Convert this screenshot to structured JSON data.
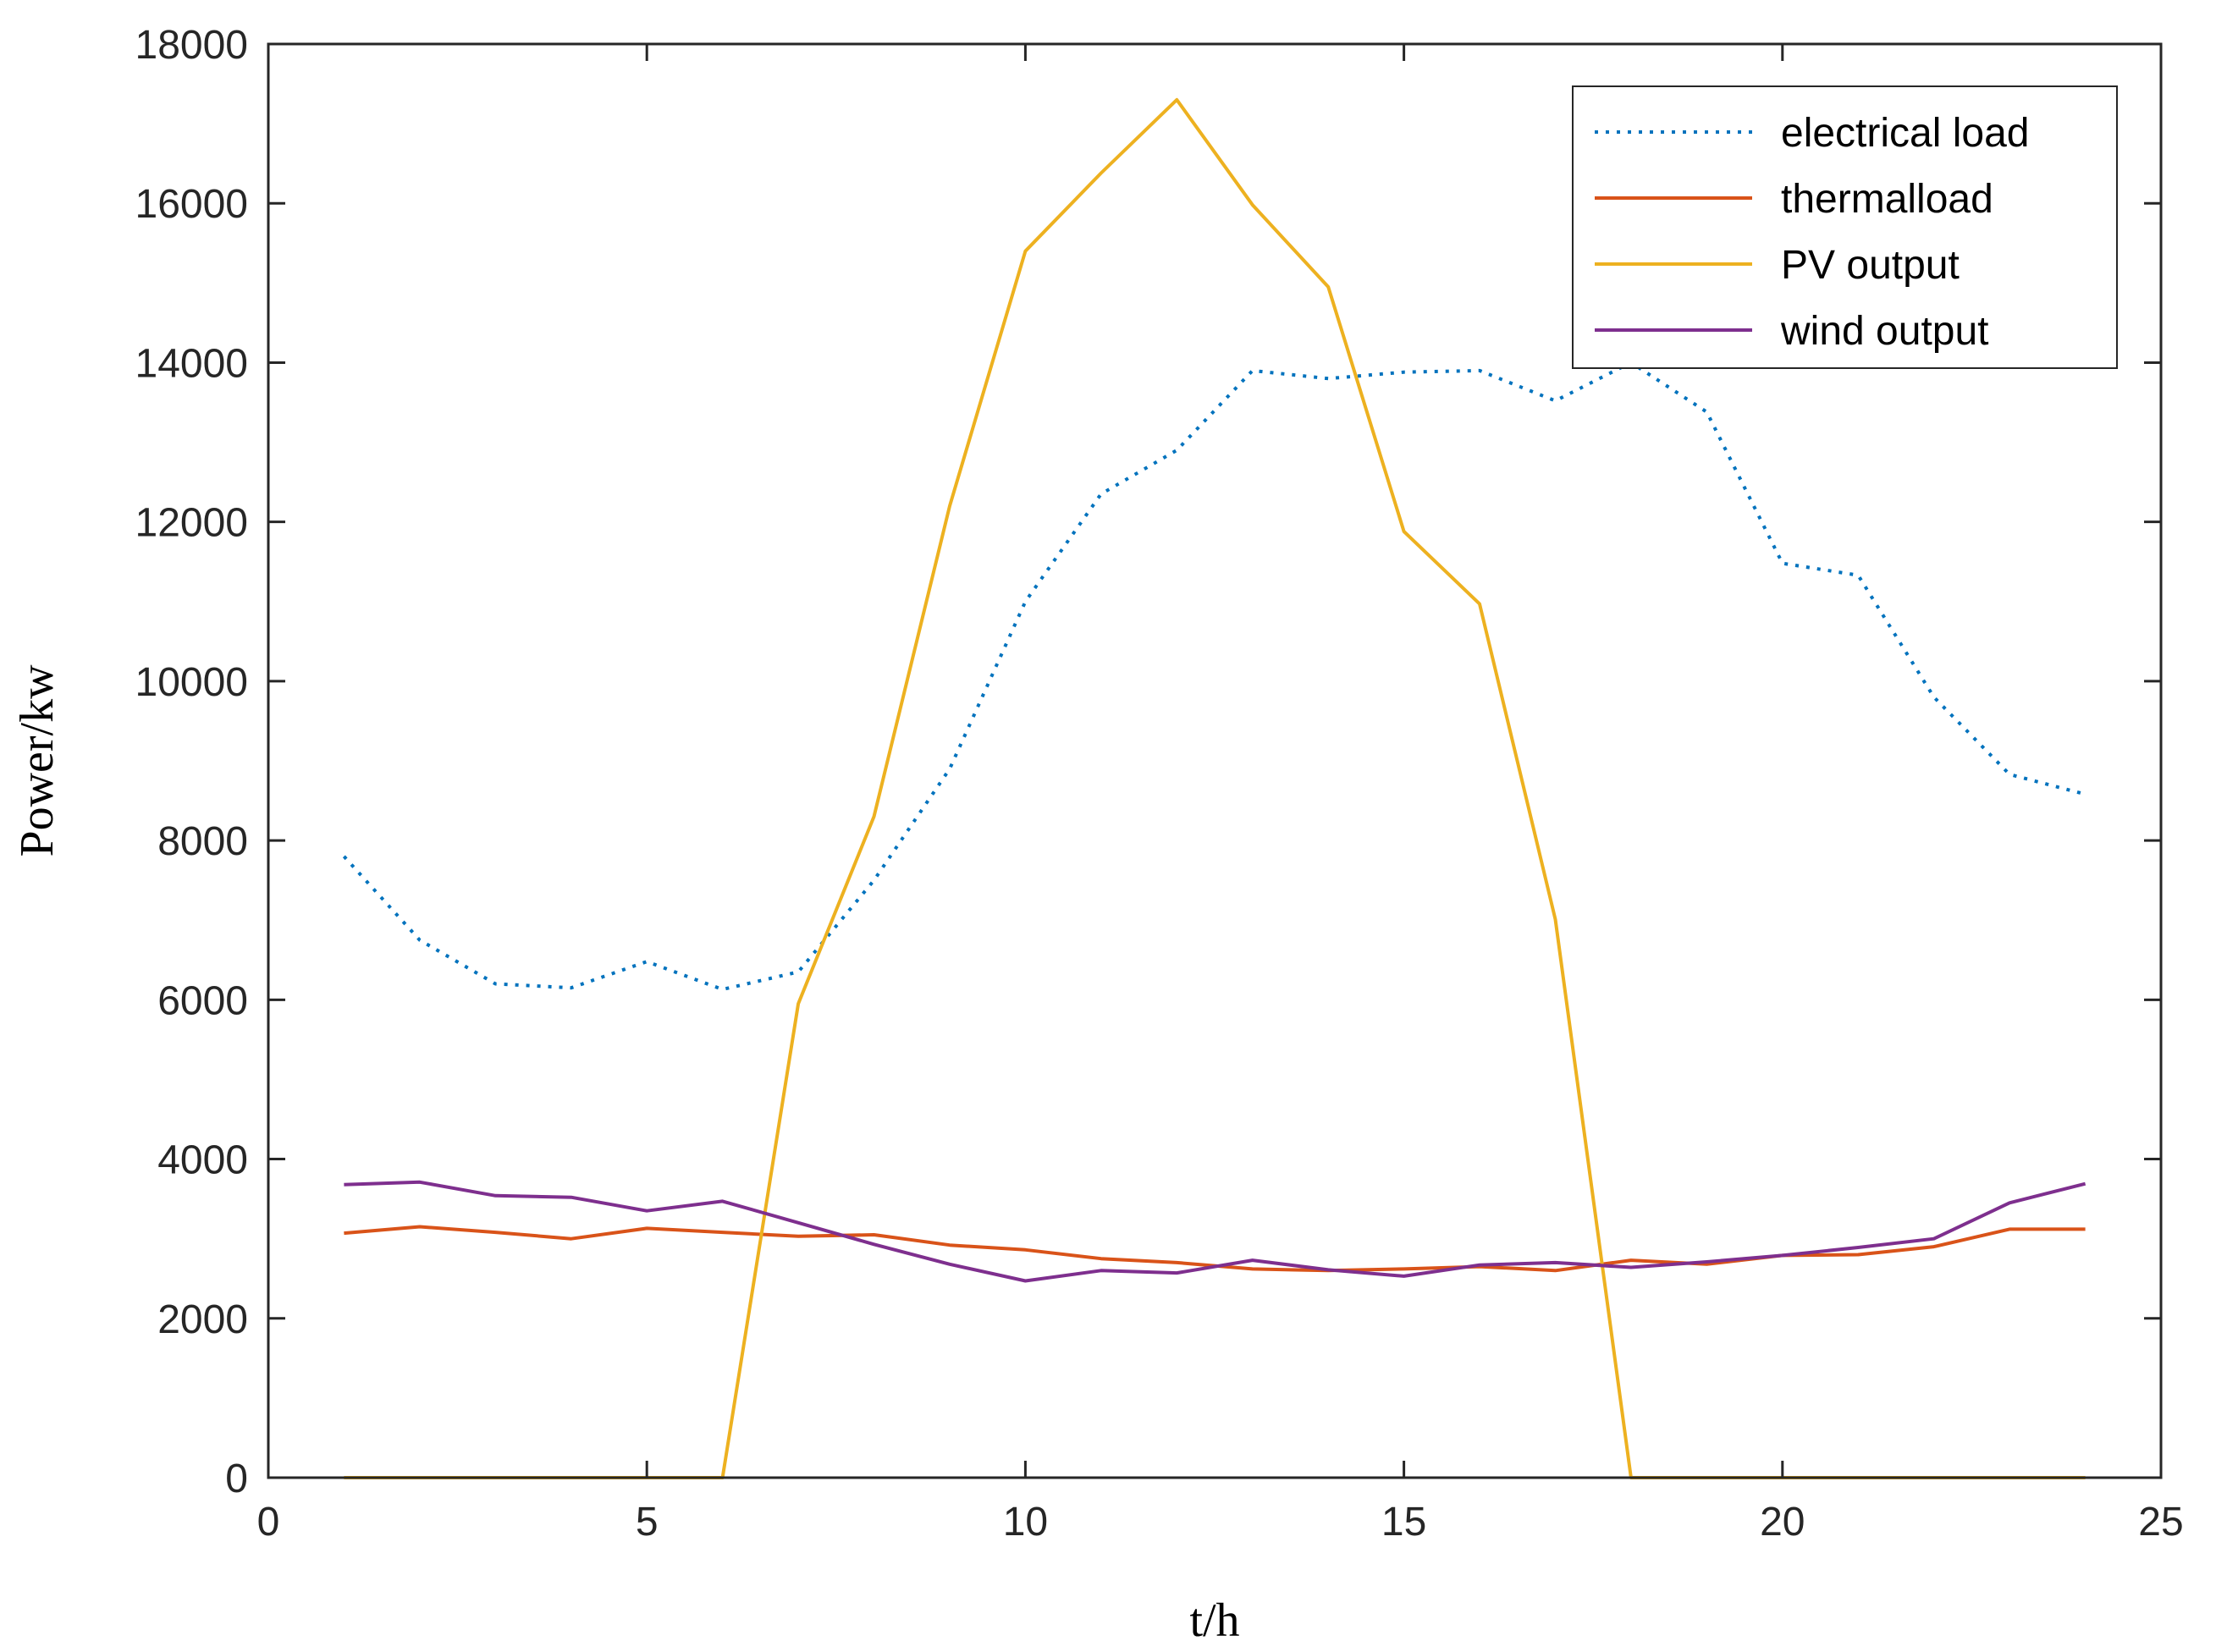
{
  "chart_data": {
    "type": "line",
    "title": "",
    "xlabel": "t/h",
    "ylabel": "Power/kw",
    "xlim": [
      0,
      25
    ],
    "ylim": [
      0,
      18000
    ],
    "xticks": [
      0,
      5,
      10,
      15,
      20,
      25
    ],
    "yticks": [
      0,
      2000,
      4000,
      6000,
      8000,
      10000,
      12000,
      14000,
      16000,
      18000
    ],
    "grid": false,
    "legend_position": "top-right",
    "x": [
      1,
      2,
      3,
      4,
      5,
      6,
      7,
      8,
      9,
      10,
      11,
      12,
      13,
      14,
      15,
      16,
      17,
      18,
      19,
      20,
      21,
      22,
      23,
      24
    ],
    "series": [
      {
        "name": "electrical load",
        "color": "#0072BD",
        "dash": "dotted",
        "values": [
          7800,
          6750,
          6200,
          6150,
          6480,
          6130,
          6350,
          7500,
          8900,
          11000,
          12350,
          12900,
          13900,
          13800,
          13880,
          13900,
          13520,
          14000,
          13380,
          11480,
          11330,
          9800,
          8830,
          8580
        ]
      },
      {
        "name": "thermalload",
        "color": "#D95319",
        "dash": "solid",
        "values": [
          3070,
          3150,
          3080,
          3000,
          3130,
          3080,
          3030,
          3050,
          2920,
          2860,
          2750,
          2700,
          2620,
          2600,
          2620,
          2650,
          2600,
          2730,
          2680,
          2790,
          2800,
          2900,
          3120,
          3120
        ]
      },
      {
        "name": "PV output",
        "color": "#EDB120",
        "dash": "solid",
        "values": [
          0,
          0,
          0,
          0,
          0,
          0,
          5950,
          8300,
          12200,
          15400,
          16380,
          17300,
          15980,
          14950,
          11880,
          10970,
          7010,
          0,
          0,
          0,
          0,
          0,
          0,
          0
        ]
      },
      {
        "name": "wind output",
        "color": "#7E2F8E",
        "dash": "solid",
        "values": [
          3680,
          3710,
          3540,
          3520,
          3350,
          3470,
          3200,
          2930,
          2680,
          2470,
          2600,
          2570,
          2730,
          2610,
          2530,
          2670,
          2700,
          2640,
          2710,
          2790,
          2890,
          3000,
          3450,
          3690
        ]
      }
    ]
  }
}
